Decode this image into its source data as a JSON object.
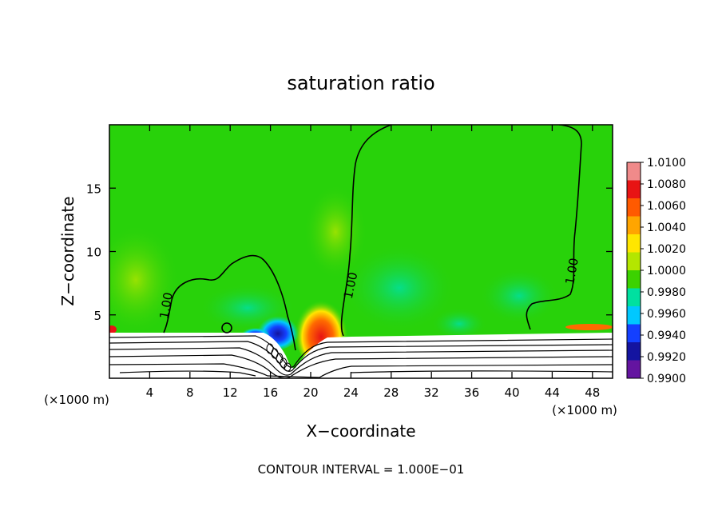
{
  "chart_data": {
    "type": "heatmap",
    "title": "saturation ratio",
    "xlabel": "X−coordinate",
    "ylabel": "Z−coordinate",
    "x_unit_left": "(×1000 m)",
    "x_unit_right": "(×1000 m)",
    "xlim": [
      0,
      50
    ],
    "ylim": [
      0,
      20
    ],
    "x_ticks": [
      4,
      8,
      12,
      16,
      20,
      24,
      28,
      32,
      36,
      40,
      44,
      48
    ],
    "y_ticks": [
      5,
      10,
      15
    ],
    "contour_labels": [
      {
        "text": "1.00",
        "x": 5.8,
        "z": 5.2
      },
      {
        "text": "1.00",
        "x": 24.0,
        "z": 7.0
      },
      {
        "text": "1.00",
        "x": 46.5,
        "z": 8.3
      }
    ],
    "footer": "CONTOUR INTERVAL =  1.000E−01",
    "colorbar": {
      "labels": [
        "1.0100",
        "1.0080",
        "1.0060",
        "1.0040",
        "1.0020",
        "1.0000",
        "0.9980",
        "0.9960",
        "0.9940",
        "0.9920",
        "0.9900"
      ],
      "colors": [
        "#f08a8a",
        "#e81414",
        "#ff5a00",
        "#ffa500",
        "#ffe600",
        "#b4e600",
        "#3cd200",
        "#00e0a0",
        "#00c8ff",
        "#1440ff",
        "#1414a0",
        "#6414a0"
      ]
    },
    "background_value": 1.0,
    "colors": {
      "field": "#28d20a",
      "field_light": "#46e63c",
      "moist_patch": "#b4e600",
      "dry_patch": "#00e0a0",
      "supersat": "#e81414",
      "subsat": "#1440ff"
    }
  }
}
